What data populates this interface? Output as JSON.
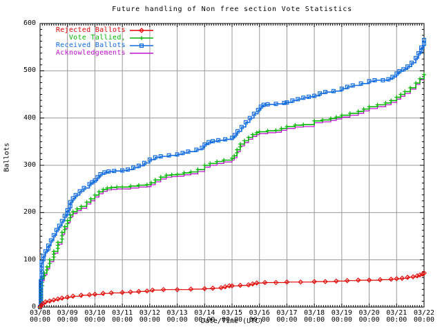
{
  "chart_data": {
    "type": "line",
    "title": "Future handling of Non free section Vote Statistics",
    "xlabel": "Date/Time (UTC)",
    "ylabel": "Ballots",
    "ylim": [
      0,
      600
    ],
    "y_ticks": [
      0,
      100,
      200,
      300,
      400,
      500,
      600
    ],
    "x_range_days": [
      0,
      14
    ],
    "grid": true,
    "legend_position": "top-left-inside",
    "x_ticks": [
      {
        "date": "03/08",
        "time": "00:00"
      },
      {
        "date": "03/09",
        "time": "00:00"
      },
      {
        "date": "03/10",
        "time": "00:00"
      },
      {
        "date": "03/11",
        "time": "00:00"
      },
      {
        "date": "03/12",
        "time": "00:00"
      },
      {
        "date": "03/13",
        "time": "00:00"
      },
      {
        "date": "03/14",
        "time": "00:00"
      },
      {
        "date": "03/15",
        "time": "00:00"
      },
      {
        "date": "03/16",
        "time": "00:00"
      },
      {
        "date": "03/17",
        "time": "00:00"
      },
      {
        "date": "03/18",
        "time": "00:00"
      },
      {
        "date": "03/19",
        "time": "00:00"
      },
      {
        "date": "03/20",
        "time": "00:00"
      },
      {
        "date": "03/21",
        "time": "00:00"
      },
      {
        "date": "03/22",
        "time": "00:00"
      }
    ],
    "colors": {
      "rejected": "#e60000",
      "tallied": "#00b400",
      "received": "#0e6ae0",
      "acknowledgements": "#bf10d0",
      "grid": "#999999",
      "border": "#000000"
    },
    "series": [
      {
        "name": "Rejected Ballots",
        "color": "#e60000",
        "marker": "diamond",
        "points": [
          [
            0,
            0
          ],
          [
            0.05,
            4
          ],
          [
            0.1,
            7
          ],
          [
            0.2,
            11
          ],
          [
            0.35,
            13
          ],
          [
            0.5,
            15
          ],
          [
            0.65,
            17
          ],
          [
            0.8,
            19
          ],
          [
            1.0,
            21
          ],
          [
            1.2,
            23
          ],
          [
            1.5,
            25
          ],
          [
            1.8,
            26
          ],
          [
            2.0,
            27
          ],
          [
            2.3,
            29
          ],
          [
            2.6,
            30
          ],
          [
            3.0,
            31
          ],
          [
            3.3,
            32
          ],
          [
            3.6,
            33
          ],
          [
            3.9,
            34
          ],
          [
            4.1,
            36
          ],
          [
            4.5,
            37
          ],
          [
            5.0,
            37
          ],
          [
            5.5,
            38
          ],
          [
            6.0,
            39
          ],
          [
            6.3,
            40
          ],
          [
            6.6,
            41
          ],
          [
            6.75,
            43
          ],
          [
            6.9,
            45
          ],
          [
            7.0,
            45
          ],
          [
            7.3,
            46
          ],
          [
            7.6,
            47
          ],
          [
            7.75,
            49
          ],
          [
            7.9,
            51
          ],
          [
            8.2,
            52
          ],
          [
            8.6,
            52
          ],
          [
            9.0,
            53
          ],
          [
            9.5,
            53
          ],
          [
            10.0,
            54
          ],
          [
            10.4,
            54
          ],
          [
            10.8,
            55
          ],
          [
            11.2,
            56
          ],
          [
            11.6,
            57
          ],
          [
            12.0,
            57
          ],
          [
            12.4,
            58
          ],
          [
            12.8,
            59
          ],
          [
            13.0,
            60
          ],
          [
            13.2,
            61
          ],
          [
            13.4,
            63
          ],
          [
            13.6,
            64
          ],
          [
            13.75,
            66
          ],
          [
            13.85,
            68
          ],
          [
            13.95,
            70
          ],
          [
            14.0,
            72
          ]
        ]
      },
      {
        "name": "Vote Tallied,",
        "color": "#00b400",
        "marker": "plus",
        "points": [
          [
            0,
            0
          ],
          [
            0.04,
            38
          ],
          [
            0.08,
            60
          ],
          [
            0.15,
            72
          ],
          [
            0.25,
            85
          ],
          [
            0.35,
            100
          ],
          [
            0.5,
            118
          ],
          [
            0.65,
            137
          ],
          [
            0.8,
            158
          ],
          [
            0.9,
            170
          ],
          [
            1.0,
            183
          ],
          [
            1.1,
            195
          ],
          [
            1.2,
            202
          ],
          [
            1.35,
            208
          ],
          [
            1.5,
            213
          ],
          [
            1.7,
            222
          ],
          [
            1.85,
            229
          ],
          [
            2.0,
            237
          ],
          [
            2.15,
            244
          ],
          [
            2.3,
            249
          ],
          [
            2.45,
            252
          ],
          [
            2.6,
            253
          ],
          [
            2.8,
            254
          ],
          [
            3.0,
            254
          ],
          [
            3.3,
            256
          ],
          [
            3.6,
            258
          ],
          [
            3.9,
            259
          ],
          [
            4.05,
            263
          ],
          [
            4.2,
            269
          ],
          [
            4.4,
            275
          ],
          [
            4.6,
            279
          ],
          [
            4.8,
            280
          ],
          [
            5.0,
            281
          ],
          [
            5.25,
            284
          ],
          [
            5.5,
            286
          ],
          [
            5.75,
            291
          ],
          [
            6.0,
            300
          ],
          [
            6.2,
            304
          ],
          [
            6.45,
            308
          ],
          [
            6.7,
            311
          ],
          [
            7.0,
            315
          ],
          [
            7.08,
            320
          ],
          [
            7.18,
            333
          ],
          [
            7.3,
            345
          ],
          [
            7.45,
            352
          ],
          [
            7.6,
            359
          ],
          [
            7.75,
            365
          ],
          [
            7.9,
            369
          ],
          [
            8.0,
            371
          ],
          [
            8.3,
            373
          ],
          [
            8.6,
            374
          ],
          [
            8.8,
            378
          ],
          [
            9.0,
            382
          ],
          [
            9.3,
            385
          ],
          [
            9.6,
            386
          ],
          [
            10.0,
            394
          ],
          [
            10.3,
            396
          ],
          [
            10.6,
            399
          ],
          [
            10.8,
            402
          ],
          [
            11.0,
            406
          ],
          [
            11.3,
            410
          ],
          [
            11.6,
            414
          ],
          [
            11.8,
            419
          ],
          [
            12.0,
            424
          ],
          [
            12.3,
            428
          ],
          [
            12.6,
            432
          ],
          [
            12.8,
            437
          ],
          [
            13.0,
            444
          ],
          [
            13.15,
            450
          ],
          [
            13.3,
            456
          ],
          [
            13.5,
            464
          ],
          [
            13.7,
            474
          ],
          [
            13.85,
            483
          ],
          [
            14.0,
            492
          ]
        ]
      },
      {
        "name": "Received Ballots",
        "color": "#0e6ae0",
        "marker": "square",
        "points": [
          [
            0,
            0
          ],
          [
            0.03,
            55
          ],
          [
            0.06,
            95
          ],
          [
            0.12,
            108
          ],
          [
            0.2,
            118
          ],
          [
            0.3,
            130
          ],
          [
            0.4,
            141
          ],
          [
            0.5,
            152
          ],
          [
            0.6,
            163
          ],
          [
            0.7,
            172
          ],
          [
            0.8,
            182
          ],
          [
            0.9,
            193
          ],
          [
            1.0,
            205
          ],
          [
            1.1,
            222
          ],
          [
            1.2,
            230
          ],
          [
            1.3,
            237
          ],
          [
            1.45,
            245
          ],
          [
            1.6,
            252
          ],
          [
            1.8,
            260
          ],
          [
            1.9,
            264
          ],
          [
            2.0,
            268
          ],
          [
            2.1,
            275
          ],
          [
            2.2,
            281
          ],
          [
            2.35,
            285
          ],
          [
            2.5,
            287
          ],
          [
            2.7,
            288
          ],
          [
            3.0,
            289
          ],
          [
            3.2,
            291
          ],
          [
            3.4,
            295
          ],
          [
            3.6,
            299
          ],
          [
            3.8,
            305
          ],
          [
            4.0,
            312
          ],
          [
            4.2,
            317
          ],
          [
            4.4,
            319
          ],
          [
            4.7,
            321
          ],
          [
            5.0,
            323
          ],
          [
            5.2,
            326
          ],
          [
            5.4,
            329
          ],
          [
            5.7,
            333
          ],
          [
            5.9,
            337
          ],
          [
            6.0,
            344
          ],
          [
            6.15,
            349
          ],
          [
            6.3,
            351
          ],
          [
            6.5,
            353
          ],
          [
            6.75,
            355
          ],
          [
            7.0,
            358
          ],
          [
            7.1,
            364
          ],
          [
            7.2,
            372
          ],
          [
            7.35,
            381
          ],
          [
            7.5,
            391
          ],
          [
            7.65,
            400
          ],
          [
            7.8,
            409
          ],
          [
            7.95,
            417
          ],
          [
            8.05,
            424
          ],
          [
            8.15,
            428
          ],
          [
            8.3,
            429
          ],
          [
            8.6,
            430
          ],
          [
            8.9,
            432
          ],
          [
            9.0,
            433
          ],
          [
            9.2,
            437
          ],
          [
            9.4,
            440
          ],
          [
            9.6,
            443
          ],
          [
            9.8,
            445
          ],
          [
            10.0,
            447
          ],
          [
            10.2,
            452
          ],
          [
            10.4,
            455
          ],
          [
            10.7,
            457
          ],
          [
            11.0,
            462
          ],
          [
            11.2,
            466
          ],
          [
            11.4,
            469
          ],
          [
            11.7,
            473
          ],
          [
            12.0,
            478
          ],
          [
            12.2,
            480
          ],
          [
            12.5,
            480
          ],
          [
            12.7,
            482
          ],
          [
            12.85,
            487
          ],
          [
            13.0,
            494
          ],
          [
            13.1,
            499
          ],
          [
            13.25,
            503
          ],
          [
            13.4,
            509
          ],
          [
            13.55,
            517
          ],
          [
            13.7,
            527
          ],
          [
            13.8,
            537
          ],
          [
            13.9,
            549
          ],
          [
            14.0,
            565
          ]
        ]
      },
      {
        "name": "Acknowledgements",
        "color": "#bf10d0",
        "marker": "none",
        "points": [
          [
            0,
            0
          ],
          [
            0.04,
            34
          ],
          [
            0.08,
            56
          ],
          [
            0.15,
            68
          ],
          [
            0.25,
            81
          ],
          [
            0.35,
            96
          ],
          [
            0.5,
            114
          ],
          [
            0.65,
            133
          ],
          [
            0.8,
            154
          ],
          [
            0.9,
            166
          ],
          [
            1.0,
            179
          ],
          [
            1.1,
            191
          ],
          [
            1.2,
            198
          ],
          [
            1.35,
            204
          ],
          [
            1.5,
            209
          ],
          [
            1.7,
            218
          ],
          [
            1.85,
            225
          ],
          [
            2.0,
            233
          ],
          [
            2.15,
            240
          ],
          [
            2.3,
            245
          ],
          [
            2.45,
            248
          ],
          [
            2.6,
            249
          ],
          [
            2.8,
            250
          ],
          [
            3.0,
            250
          ],
          [
            3.3,
            252
          ],
          [
            3.6,
            254
          ],
          [
            3.9,
            255
          ],
          [
            4.05,
            259
          ],
          [
            4.2,
            265
          ],
          [
            4.4,
            271
          ],
          [
            4.6,
            275
          ],
          [
            4.8,
            276
          ],
          [
            5.0,
            277
          ],
          [
            5.25,
            280
          ],
          [
            5.5,
            282
          ],
          [
            5.75,
            287
          ],
          [
            6.0,
            296
          ],
          [
            6.2,
            300
          ],
          [
            6.45,
            304
          ],
          [
            6.7,
            307
          ],
          [
            7.0,
            311
          ],
          [
            7.08,
            316
          ],
          [
            7.18,
            329
          ],
          [
            7.3,
            341
          ],
          [
            7.45,
            348
          ],
          [
            7.6,
            355
          ],
          [
            7.75,
            361
          ],
          [
            7.9,
            365
          ],
          [
            8.0,
            367
          ],
          [
            8.3,
            369
          ],
          [
            8.6,
            370
          ],
          [
            8.8,
            374
          ],
          [
            9.0,
            378
          ],
          [
            9.3,
            381
          ],
          [
            9.6,
            382
          ],
          [
            10.0,
            390
          ],
          [
            10.3,
            392
          ],
          [
            10.6,
            395
          ],
          [
            10.8,
            398
          ],
          [
            11.0,
            402
          ],
          [
            11.3,
            406
          ],
          [
            11.6,
            410
          ],
          [
            11.8,
            415
          ],
          [
            12.0,
            420
          ],
          [
            12.3,
            424
          ],
          [
            12.6,
            428
          ],
          [
            12.8,
            433
          ],
          [
            13.0,
            440
          ],
          [
            13.15,
            446
          ],
          [
            13.3,
            452
          ],
          [
            13.5,
            461
          ],
          [
            13.7,
            471
          ],
          [
            13.85,
            481
          ],
          [
            14.0,
            490
          ]
        ]
      }
    ]
  }
}
